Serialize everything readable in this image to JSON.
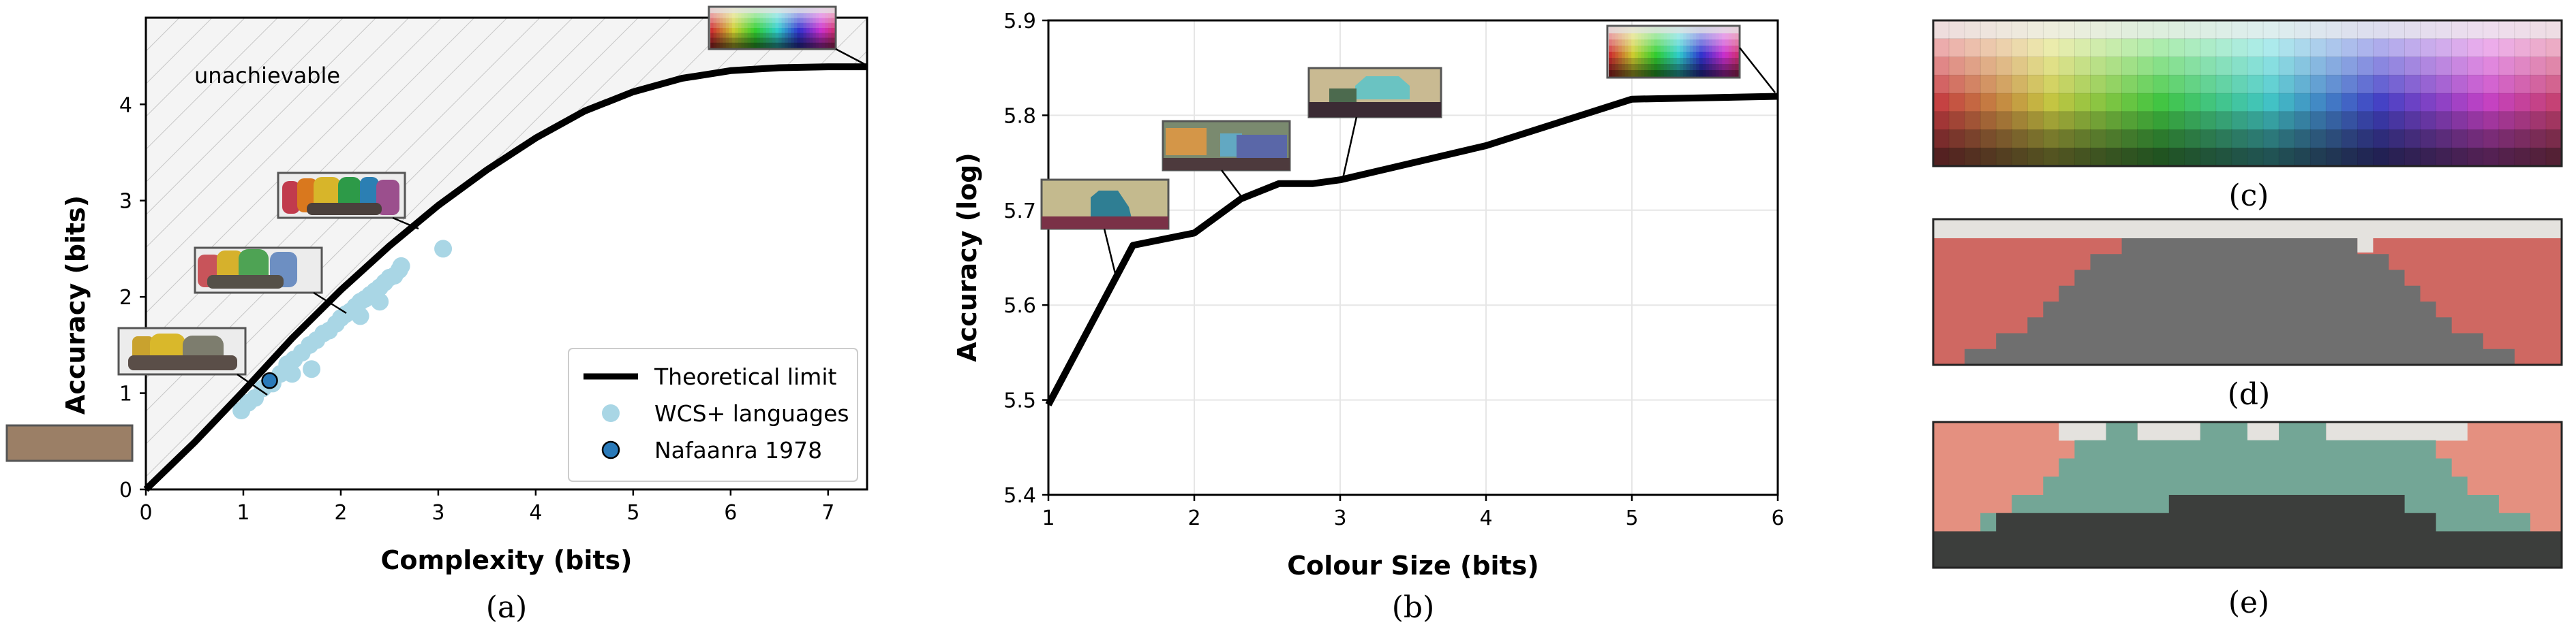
{
  "chart_data": [
    {
      "type": "line",
      "caption": "(a)",
      "xlabel": "Complexity (bits)",
      "ylabel": "Accuracy (bits)",
      "xlim": [
        0,
        7.4
      ],
      "ylim": [
        0,
        4.9
      ],
      "xticks": [
        "0",
        "1",
        "2",
        "3",
        "4",
        "5",
        "6",
        "7"
      ],
      "yticks": [
        "0",
        "1",
        "2",
        "3",
        "4"
      ],
      "annotation": "unachievable",
      "grid": false,
      "legend_position": "lower-right",
      "legend": [
        "Theoretical limit",
        "WCS+ languages",
        "Nafaanra 1978"
      ],
      "series": [
        {
          "name": "Theoretical limit",
          "kind": "line",
          "color": "#000000",
          "x": [
            0,
            0.5,
            1,
            1.5,
            2,
            2.5,
            3,
            3.5,
            4,
            4.5,
            5,
            5.5,
            6,
            6.5,
            7,
            7.4
          ],
          "y": [
            0,
            0.49,
            1.02,
            1.57,
            2.07,
            2.53,
            2.95,
            3.32,
            3.65,
            3.93,
            4.13,
            4.27,
            4.35,
            4.38,
            4.39,
            4.39
          ]
        },
        {
          "name": "WCS+ languages",
          "kind": "scatter",
          "color": "#a9d6e5",
          "x": [
            0.98,
            1.05,
            1.12,
            1.2,
            1.3,
            1.38,
            1.45,
            1.52,
            1.6,
            1.68,
            1.75,
            1.82,
            1.88,
            1.95,
            2.0,
            2.05,
            2.1,
            2.15,
            2.2,
            2.25,
            2.3,
            2.35,
            2.4,
            2.45,
            2.5,
            2.55,
            2.6,
            2.62,
            3.05,
            1.7,
            1.5,
            2.2,
            2.4
          ],
          "y": [
            0.82,
            0.9,
            0.95,
            1.05,
            1.1,
            1.2,
            1.3,
            1.35,
            1.42,
            1.5,
            1.55,
            1.62,
            1.65,
            1.72,
            1.78,
            1.82,
            1.85,
            1.9,
            1.95,
            1.98,
            2.02,
            2.06,
            2.1,
            2.15,
            2.2,
            2.22,
            2.28,
            2.32,
            2.5,
            1.25,
            1.2,
            1.8,
            1.95
          ]
        },
        {
          "name": "Nafaanra 1978",
          "kind": "scatter",
          "color": "#2a7ab9",
          "x": [
            1.27
          ],
          "y": [
            1.13
          ]
        }
      ]
    },
    {
      "type": "line",
      "caption": "(b)",
      "xlabel": "Colour Size (bits)",
      "ylabel": "Accuracy (log)",
      "xlim": [
        1,
        6
      ],
      "ylim": [
        5.4,
        5.9
      ],
      "xticks": [
        "1",
        "2",
        "3",
        "4",
        "5",
        "6"
      ],
      "yticks": [
        "5.4",
        "5.5",
        "5.6",
        "5.7",
        "5.8",
        "5.9"
      ],
      "grid": true,
      "series": [
        {
          "kind": "line",
          "color": "#000000",
          "x": [
            1,
            1.58,
            2,
            2.32,
            2.58,
            2.81,
            3,
            4,
            5,
            6
          ],
          "y": [
            5.495,
            5.663,
            5.676,
            5.712,
            5.728,
            5.728,
            5.732,
            5.768,
            5.817,
            5.82
          ]
        }
      ]
    }
  ],
  "panels": {
    "c": {
      "caption": "(c)"
    },
    "d": {
      "caption": "(d)"
    },
    "e": {
      "caption": "(e)"
    }
  },
  "colors": {
    "hatch": "#c8c8c8",
    "scatter_light": "#a9d6e5",
    "scatter_dark": "#2a7ab9",
    "d_red": "#cf6862",
    "d_grey": "#6f6f6f",
    "e_salmon": "#e49080",
    "e_teal": "#73a696",
    "e_dark": "#3c3e3c",
    "light": "#e4e2de"
  }
}
